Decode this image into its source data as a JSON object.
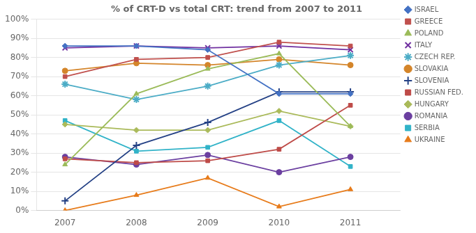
{
  "chart_data": {
    "type": "line",
    "title": "% of CRT-D vs total CRT: trend from 2007 to 2011",
    "x": [
      2007,
      2008,
      2009,
      2010,
      2011
    ],
    "series": [
      {
        "name": "ISRAEL",
        "color": "#4472C4",
        "marker": "diamond",
        "values": [
          86,
          86,
          84,
          61,
          61
        ]
      },
      {
        "name": "GREECE",
        "color": "#C0504D",
        "marker": "square",
        "values": [
          70,
          79,
          80,
          88,
          86
        ]
      },
      {
        "name": "POLAND",
        "color": "#9BBB59",
        "marker": "triangle",
        "values": [
          24,
          61,
          74,
          82,
          44
        ]
      },
      {
        "name": "ITALY",
        "color": "#7030A0",
        "marker": "x",
        "values": [
          85,
          86,
          85,
          86,
          84
        ]
      },
      {
        "name": "CZECH REP.",
        "color": "#4BACC6",
        "marker": "star",
        "values": [
          66,
          58,
          65,
          76,
          81
        ]
      },
      {
        "name": "SLOVAKIA",
        "color": "#D4852A",
        "marker": "circle",
        "values": [
          73,
          77,
          76,
          79,
          76
        ]
      },
      {
        "name": "SLOVENIA",
        "color": "#244185",
        "marker": "plus",
        "values": [
          5,
          34,
          46,
          62,
          62
        ]
      },
      {
        "name": "RUSSIAN FED.",
        "color": "#BE4B48",
        "marker": "square",
        "values": [
          27,
          25,
          26,
          32,
          55
        ]
      },
      {
        "name": "HUNGARY",
        "color": "#AABA5A",
        "marker": "diamond",
        "values": [
          45,
          42,
          42,
          52,
          44
        ]
      },
      {
        "name": "ROMANIA",
        "color": "#6B3FA0",
        "marker": "circle",
        "values": [
          28,
          24,
          29,
          20,
          28
        ]
      },
      {
        "name": "SERBIA",
        "color": "#31B3C8",
        "marker": "square",
        "values": [
          47,
          31,
          33,
          47,
          23
        ]
      },
      {
        "name": "UKRAINE",
        "color": "#E77B1A",
        "marker": "triangle",
        "values": [
          0,
          8,
          17,
          2,
          11
        ]
      }
    ],
    "xlim": [
      2006.6,
      2011.7
    ],
    "xticks": [
      2007,
      2008,
      2009,
      2010,
      2011
    ],
    "ylim": [
      0,
      100
    ],
    "yticks": [
      {
        "value": 0,
        "label": "0%"
      },
      {
        "value": 10,
        "label": "10%"
      },
      {
        "value": 20,
        "label": "20%"
      },
      {
        "value": 30,
        "label": "30%"
      },
      {
        "value": 40,
        "label": "40%"
      },
      {
        "value": 50,
        "label": "50%"
      },
      {
        "value": 60,
        "label": "60%"
      },
      {
        "value": 70,
        "label": "70%"
      },
      {
        "value": 80,
        "label": "80%"
      },
      {
        "value": 90,
        "label": "90%"
      },
      {
        "value": 100,
        "label": "100%"
      }
    ],
    "grid": "y",
    "legend": "right"
  }
}
